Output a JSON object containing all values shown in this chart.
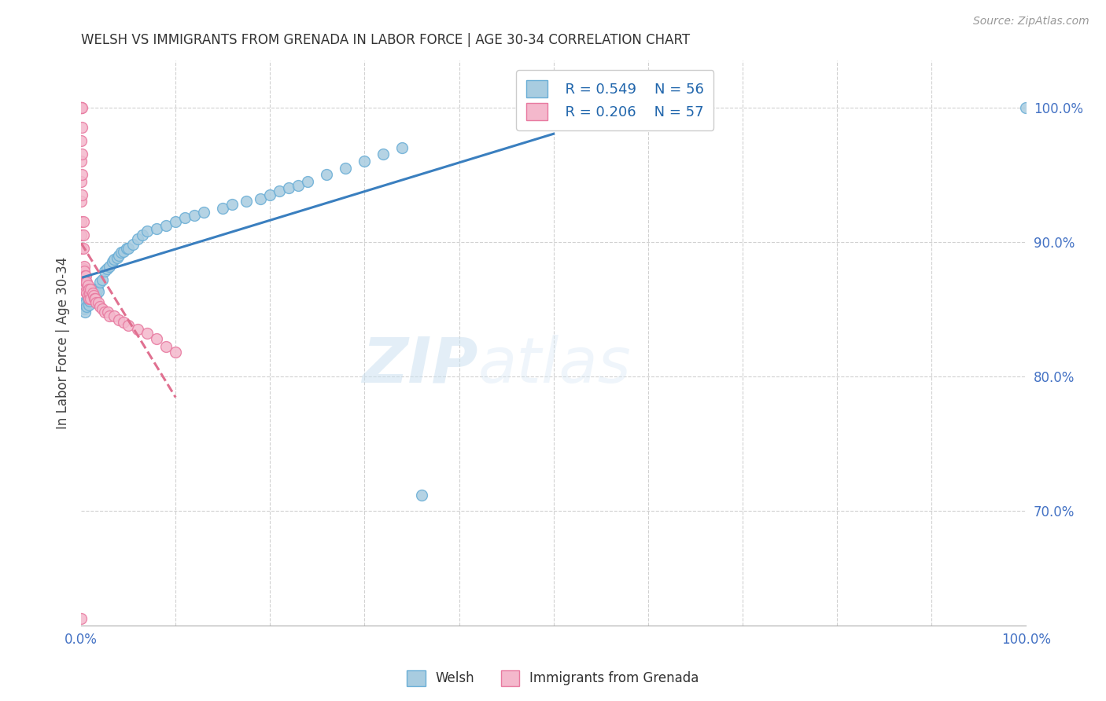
{
  "title": "WELSH VS IMMIGRANTS FROM GRENADA IN LABOR FORCE | AGE 30-34 CORRELATION CHART",
  "source": "Source: ZipAtlas.com",
  "ylabel": "In Labor Force | Age 30-34",
  "ytick_labels": [
    "70.0%",
    "80.0%",
    "90.0%",
    "100.0%"
  ],
  "ytick_values": [
    0.7,
    0.8,
    0.9,
    1.0
  ],
  "xlim": [
    0.0,
    1.0
  ],
  "ylim": [
    0.615,
    1.035
  ],
  "welsh_R": 0.549,
  "welsh_N": 56,
  "grenada_R": 0.206,
  "grenada_N": 57,
  "welsh_color": "#a8cce0",
  "grenada_color": "#f4b8cc",
  "welsh_edge_color": "#6aaed6",
  "grenada_edge_color": "#e87aa0",
  "trendline_welsh_color": "#3a7fbf",
  "trendline_grenada_color": "#e07090",
  "trendline_grenada_style": "--",
  "legend_welsh": "Welsh",
  "legend_grenada": "Immigrants from Grenada",
  "watermark_zip": "ZIP",
  "watermark_atlas": "atlas",
  "background_color": "#ffffff",
  "welsh_x": [
    0.002,
    0.003,
    0.004,
    0.005,
    0.006,
    0.007,
    0.008,
    0.009,
    0.01,
    0.011,
    0.012,
    0.013,
    0.014,
    0.015,
    0.016,
    0.017,
    0.018,
    0.02,
    0.022,
    0.025,
    0.027,
    0.03,
    0.033,
    0.035,
    0.038,
    0.04,
    0.042,
    0.045,
    0.048,
    0.05,
    0.055,
    0.06,
    0.065,
    0.07,
    0.08,
    0.09,
    0.1,
    0.11,
    0.12,
    0.13,
    0.15,
    0.16,
    0.175,
    0.19,
    0.2,
    0.21,
    0.22,
    0.23,
    0.24,
    0.26,
    0.28,
    0.3,
    0.32,
    0.34,
    0.36,
    1.0
  ],
  "welsh_y": [
    0.855,
    0.85,
    0.848,
    0.855,
    0.852,
    0.858,
    0.853,
    0.856,
    0.862,
    0.86,
    0.858,
    0.865,
    0.862,
    0.863,
    0.86,
    0.865,
    0.863,
    0.87,
    0.872,
    0.878,
    0.88,
    0.882,
    0.885,
    0.887,
    0.888,
    0.89,
    0.892,
    0.893,
    0.895,
    0.895,
    0.898,
    0.902,
    0.905,
    0.908,
    0.91,
    0.912,
    0.915,
    0.918,
    0.92,
    0.922,
    0.925,
    0.928,
    0.93,
    0.932,
    0.935,
    0.938,
    0.94,
    0.942,
    0.945,
    0.95,
    0.955,
    0.96,
    0.965,
    0.97,
    0.712,
    1.0
  ],
  "grenada_x": [
    0.0,
    0.0,
    0.0,
    0.0,
    0.0,
    0.0,
    0.0,
    0.0,
    0.0,
    0.0,
    0.001,
    0.001,
    0.001,
    0.001,
    0.001,
    0.002,
    0.002,
    0.002,
    0.002,
    0.003,
    0.003,
    0.003,
    0.004,
    0.004,
    0.005,
    0.005,
    0.005,
    0.006,
    0.006,
    0.007,
    0.007,
    0.008,
    0.008,
    0.009,
    0.01,
    0.01,
    0.012,
    0.013,
    0.014,
    0.015,
    0.016,
    0.018,
    0.02,
    0.022,
    0.025,
    0.028,
    0.03,
    0.035,
    0.04,
    0.045,
    0.05,
    0.06,
    0.07,
    0.08,
    0.09,
    0.1,
    0.0
  ],
  "grenada_y": [
    1.0,
    1.0,
    1.0,
    0.975,
    0.96,
    0.945,
    0.93,
    0.915,
    0.905,
    0.895,
    1.0,
    0.985,
    0.965,
    0.95,
    0.935,
    0.915,
    0.905,
    0.895,
    0.88,
    0.882,
    0.878,
    0.872,
    0.875,
    0.868,
    0.875,
    0.87,
    0.863,
    0.87,
    0.862,
    0.868,
    0.86,
    0.865,
    0.858,
    0.862,
    0.865,
    0.858,
    0.862,
    0.86,
    0.858,
    0.858,
    0.855,
    0.855,
    0.852,
    0.85,
    0.848,
    0.848,
    0.845,
    0.845,
    0.842,
    0.84,
    0.838,
    0.835,
    0.832,
    0.828,
    0.822,
    0.818,
    0.62
  ]
}
